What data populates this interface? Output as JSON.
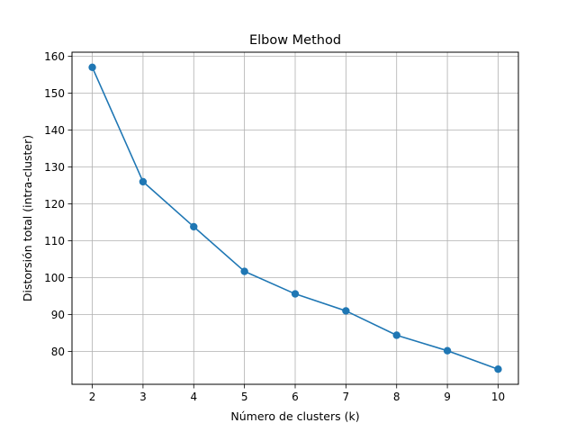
{
  "chart_data": {
    "type": "line",
    "title": "Elbow Method",
    "xlabel": "Número de clusters (k)",
    "ylabel": "Distorsión total (intra-cluster)",
    "x": [
      2,
      3,
      4,
      5,
      6,
      7,
      8,
      9,
      10
    ],
    "series": [
      {
        "values": [
          157.0,
          126.0,
          113.8,
          101.7,
          95.6,
          91.0,
          84.4,
          80.2,
          75.2
        ],
        "color": "#1f77b4",
        "marker": "circle"
      }
    ],
    "xticks": [
      2,
      3,
      4,
      5,
      6,
      7,
      8,
      9,
      10
    ],
    "yticks": [
      80,
      90,
      100,
      110,
      120,
      130,
      140,
      150,
      160
    ],
    "xlim": [
      1.6,
      10.4
    ],
    "ylim": [
      71.1,
      161.1
    ],
    "grid": true
  }
}
